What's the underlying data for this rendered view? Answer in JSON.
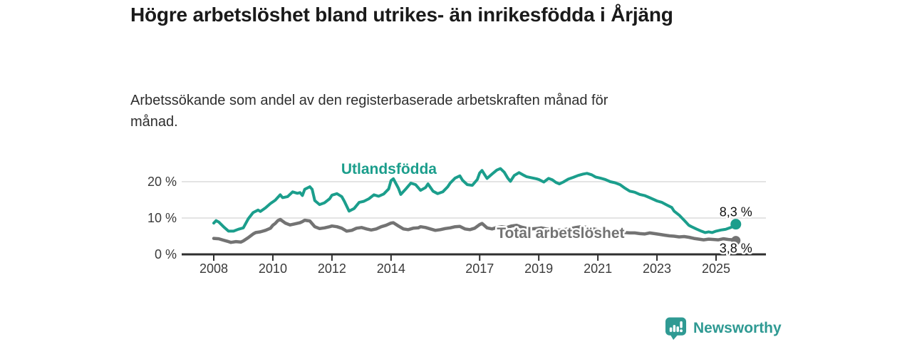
{
  "header": {
    "title": "Högre arbetslöshet bland utrikes- än inrikesfödda i Årjäng",
    "subtitle": "Arbetssökande som andel av den registerbaserade arbetskraften månad för månad."
  },
  "colors": {
    "teal": "#1b9e8c",
    "gray": "#737373",
    "grid": "#dcdcdc",
    "axis": "#2f2f2f",
    "tick_text": "#3a3a3a",
    "value_label_text": "#111111",
    "logo_teal": "#2f9a93"
  },
  "footer": {
    "brand": "Newsworthy"
  },
  "chart_data": {
    "type": "line",
    "title": "",
    "xlabel": "",
    "ylabel": "",
    "x_axis": {
      "ticks": [
        2008,
        2010,
        2012,
        2014,
        2017,
        2019,
        2021,
        2023,
        2025
      ],
      "range": [
        2006.9,
        2026.7
      ]
    },
    "y_axis": {
      "ticks": [
        0,
        10,
        20
      ],
      "tick_suffix": " %",
      "range": [
        0,
        24
      ]
    },
    "grid": "horizontal-only",
    "legend_position": "inline-labels",
    "series": [
      {
        "name": "Utlandsfödda",
        "color": "#1b9e8c",
        "end_label": "8,3 %",
        "end_label_position": "above",
        "label_pos": [
          2013.93,
          23.5
        ],
        "points": [
          [
            2008.0,
            8.6
          ],
          [
            2008.08,
            9.3
          ],
          [
            2008.17,
            8.9
          ],
          [
            2008.33,
            7.6
          ],
          [
            2008.5,
            6.4
          ],
          [
            2008.67,
            6.4
          ],
          [
            2008.83,
            6.9
          ],
          [
            2009.0,
            7.3
          ],
          [
            2009.17,
            9.8
          ],
          [
            2009.33,
            11.5
          ],
          [
            2009.5,
            12.2
          ],
          [
            2009.58,
            11.8
          ],
          [
            2009.75,
            12.8
          ],
          [
            2009.92,
            14.0
          ],
          [
            2010.08,
            14.9
          ],
          [
            2010.25,
            16.4
          ],
          [
            2010.33,
            15.6
          ],
          [
            2010.5,
            15.9
          ],
          [
            2010.67,
            17.2
          ],
          [
            2010.83,
            16.8
          ],
          [
            2010.92,
            17.0
          ],
          [
            2011.0,
            16.2
          ],
          [
            2011.08,
            17.9
          ],
          [
            2011.25,
            18.6
          ],
          [
            2011.33,
            17.9
          ],
          [
            2011.42,
            14.8
          ],
          [
            2011.58,
            13.7
          ],
          [
            2011.75,
            14.2
          ],
          [
            2011.92,
            15.3
          ],
          [
            2012.0,
            16.3
          ],
          [
            2012.17,
            16.7
          ],
          [
            2012.33,
            15.9
          ],
          [
            2012.42,
            14.6
          ],
          [
            2012.58,
            11.9
          ],
          [
            2012.75,
            12.6
          ],
          [
            2012.92,
            14.3
          ],
          [
            2013.08,
            14.6
          ],
          [
            2013.25,
            15.3
          ],
          [
            2013.42,
            16.4
          ],
          [
            2013.58,
            16.0
          ],
          [
            2013.75,
            16.6
          ],
          [
            2013.92,
            18.0
          ],
          [
            2014.0,
            20.3
          ],
          [
            2014.08,
            20.8
          ],
          [
            2014.25,
            18.2
          ],
          [
            2014.33,
            16.5
          ],
          [
            2014.5,
            18.0
          ],
          [
            2014.67,
            19.6
          ],
          [
            2014.83,
            19.2
          ],
          [
            2015.0,
            17.6
          ],
          [
            2015.17,
            18.4
          ],
          [
            2015.25,
            19.4
          ],
          [
            2015.42,
            17.4
          ],
          [
            2015.58,
            16.7
          ],
          [
            2015.75,
            17.2
          ],
          [
            2015.92,
            18.6
          ],
          [
            2016.0,
            19.6
          ],
          [
            2016.17,
            21.0
          ],
          [
            2016.33,
            21.6
          ],
          [
            2016.42,
            20.4
          ],
          [
            2016.58,
            19.2
          ],
          [
            2016.75,
            19.0
          ],
          [
            2016.92,
            20.6
          ],
          [
            2017.0,
            22.4
          ],
          [
            2017.08,
            23.1
          ],
          [
            2017.17,
            21.9
          ],
          [
            2017.25,
            20.9
          ],
          [
            2017.42,
            22.1
          ],
          [
            2017.58,
            23.2
          ],
          [
            2017.7,
            23.6
          ],
          [
            2017.83,
            22.6
          ],
          [
            2017.95,
            21.0
          ],
          [
            2018.04,
            20.1
          ],
          [
            2018.17,
            21.7
          ],
          [
            2018.33,
            22.5
          ],
          [
            2018.46,
            21.9
          ],
          [
            2018.58,
            21.4
          ],
          [
            2018.75,
            21.1
          ],
          [
            2018.92,
            20.8
          ],
          [
            2019.0,
            20.6
          ],
          [
            2019.17,
            19.9
          ],
          [
            2019.33,
            20.9
          ],
          [
            2019.46,
            20.5
          ],
          [
            2019.58,
            19.8
          ],
          [
            2019.7,
            19.4
          ],
          [
            2019.83,
            19.9
          ],
          [
            2020.0,
            20.7
          ],
          [
            2020.17,
            21.2
          ],
          [
            2020.33,
            21.7
          ],
          [
            2020.5,
            22.1
          ],
          [
            2020.63,
            22.3
          ],
          [
            2020.79,
            21.9
          ],
          [
            2020.92,
            21.3
          ],
          [
            2021.08,
            21.0
          ],
          [
            2021.25,
            20.6
          ],
          [
            2021.42,
            20.0
          ],
          [
            2021.58,
            19.7
          ],
          [
            2021.75,
            19.2
          ],
          [
            2021.92,
            18.2
          ],
          [
            2022.08,
            17.4
          ],
          [
            2022.25,
            17.1
          ],
          [
            2022.42,
            16.5
          ],
          [
            2022.58,
            16.2
          ],
          [
            2022.75,
            15.6
          ],
          [
            2022.92,
            15.0
          ],
          [
            2023.0,
            14.7
          ],
          [
            2023.17,
            14.3
          ],
          [
            2023.33,
            13.6
          ],
          [
            2023.5,
            12.9
          ],
          [
            2023.58,
            11.9
          ],
          [
            2023.75,
            10.8
          ],
          [
            2023.92,
            9.4
          ],
          [
            2024.08,
            8.0
          ],
          [
            2024.17,
            7.6
          ],
          [
            2024.33,
            7.0
          ],
          [
            2024.5,
            6.4
          ],
          [
            2024.63,
            6.0
          ],
          [
            2024.75,
            6.2
          ],
          [
            2024.87,
            6.0
          ],
          [
            2025.0,
            6.4
          ],
          [
            2025.17,
            6.7
          ],
          [
            2025.33,
            6.9
          ],
          [
            2025.5,
            7.4
          ],
          [
            2025.58,
            7.8
          ],
          [
            2025.67,
            8.3
          ]
        ]
      },
      {
        "name": "Total arbetslöshet",
        "color": "#737373",
        "end_label": "3,8 %",
        "end_label_position": "below",
        "label_pos": [
          2019.74,
          5.9
        ],
        "points": [
          [
            2008.0,
            4.4
          ],
          [
            2008.17,
            4.3
          ],
          [
            2008.33,
            3.9
          ],
          [
            2008.5,
            3.5
          ],
          [
            2008.58,
            3.3
          ],
          [
            2008.75,
            3.5
          ],
          [
            2008.92,
            3.4
          ],
          [
            2009.0,
            3.7
          ],
          [
            2009.17,
            4.6
          ],
          [
            2009.33,
            5.6
          ],
          [
            2009.42,
            6.0
          ],
          [
            2009.58,
            6.2
          ],
          [
            2009.75,
            6.6
          ],
          [
            2009.92,
            7.2
          ],
          [
            2010.0,
            8.0
          ],
          [
            2010.08,
            8.5
          ],
          [
            2010.17,
            9.3
          ],
          [
            2010.25,
            9.6
          ],
          [
            2010.42,
            8.6
          ],
          [
            2010.58,
            8.1
          ],
          [
            2010.75,
            8.4
          ],
          [
            2010.92,
            8.7
          ],
          [
            2011.0,
            9.0
          ],
          [
            2011.08,
            9.4
          ],
          [
            2011.25,
            9.2
          ],
          [
            2011.42,
            7.6
          ],
          [
            2011.58,
            7.1
          ],
          [
            2011.75,
            7.3
          ],
          [
            2011.92,
            7.6
          ],
          [
            2012.0,
            7.8
          ],
          [
            2012.17,
            7.6
          ],
          [
            2012.33,
            7.2
          ],
          [
            2012.5,
            6.4
          ],
          [
            2012.67,
            6.6
          ],
          [
            2012.83,
            7.2
          ],
          [
            2013.0,
            7.4
          ],
          [
            2013.17,
            7.0
          ],
          [
            2013.33,
            6.7
          ],
          [
            2013.5,
            7.0
          ],
          [
            2013.67,
            7.6
          ],
          [
            2013.83,
            8.0
          ],
          [
            2014.0,
            8.6
          ],
          [
            2014.08,
            8.7
          ],
          [
            2014.25,
            7.8
          ],
          [
            2014.42,
            7.0
          ],
          [
            2014.58,
            6.8
          ],
          [
            2014.75,
            7.2
          ],
          [
            2014.92,
            7.3
          ],
          [
            2015.0,
            7.6
          ],
          [
            2015.17,
            7.4
          ],
          [
            2015.33,
            7.0
          ],
          [
            2015.5,
            6.6
          ],
          [
            2015.67,
            6.8
          ],
          [
            2015.83,
            7.1
          ],
          [
            2016.0,
            7.3
          ],
          [
            2016.17,
            7.6
          ],
          [
            2016.33,
            7.7
          ],
          [
            2016.5,
            7.0
          ],
          [
            2016.67,
            6.8
          ],
          [
            2016.83,
            7.2
          ],
          [
            2017.0,
            8.2
          ],
          [
            2017.08,
            8.5
          ],
          [
            2017.25,
            7.3
          ],
          [
            2017.42,
            7.0
          ],
          [
            2017.58,
            7.4
          ],
          [
            2017.75,
            7.6
          ],
          [
            2017.92,
            7.4
          ],
          [
            2018.08,
            7.8
          ],
          [
            2018.25,
            8.0
          ],
          [
            2018.42,
            7.5
          ],
          [
            2018.58,
            7.2
          ],
          [
            2018.75,
            7.0
          ],
          [
            2018.92,
            7.1
          ],
          [
            2019.08,
            7.3
          ],
          [
            2019.25,
            7.0
          ],
          [
            2019.42,
            6.8
          ],
          [
            2019.58,
            6.6
          ],
          [
            2019.75,
            6.7
          ],
          [
            2019.92,
            6.9
          ],
          [
            2020.08,
            7.1
          ],
          [
            2020.25,
            7.4
          ],
          [
            2020.42,
            7.6
          ],
          [
            2020.58,
            7.5
          ],
          [
            2020.75,
            7.2
          ],
          [
            2020.92,
            6.9
          ],
          [
            2021.08,
            6.7
          ],
          [
            2021.25,
            6.5
          ],
          [
            2021.42,
            6.3
          ],
          [
            2021.58,
            6.2
          ],
          [
            2021.75,
            6.1
          ],
          [
            2021.92,
            6.0
          ],
          [
            2022.08,
            5.9
          ],
          [
            2022.25,
            5.9
          ],
          [
            2022.42,
            5.7
          ],
          [
            2022.58,
            5.6
          ],
          [
            2022.75,
            5.9
          ],
          [
            2022.92,
            5.7
          ],
          [
            2023.08,
            5.5
          ],
          [
            2023.25,
            5.3
          ],
          [
            2023.42,
            5.1
          ],
          [
            2023.58,
            5.0
          ],
          [
            2023.75,
            4.8
          ],
          [
            2023.92,
            4.9
          ],
          [
            2024.08,
            4.7
          ],
          [
            2024.25,
            4.4
          ],
          [
            2024.42,
            4.2
          ],
          [
            2024.58,
            4.0
          ],
          [
            2024.75,
            4.2
          ],
          [
            2024.92,
            4.1
          ],
          [
            2025.08,
            4.0
          ],
          [
            2025.25,
            4.3
          ],
          [
            2025.42,
            4.1
          ],
          [
            2025.58,
            4.0
          ],
          [
            2025.67,
            3.8
          ]
        ]
      }
    ]
  }
}
